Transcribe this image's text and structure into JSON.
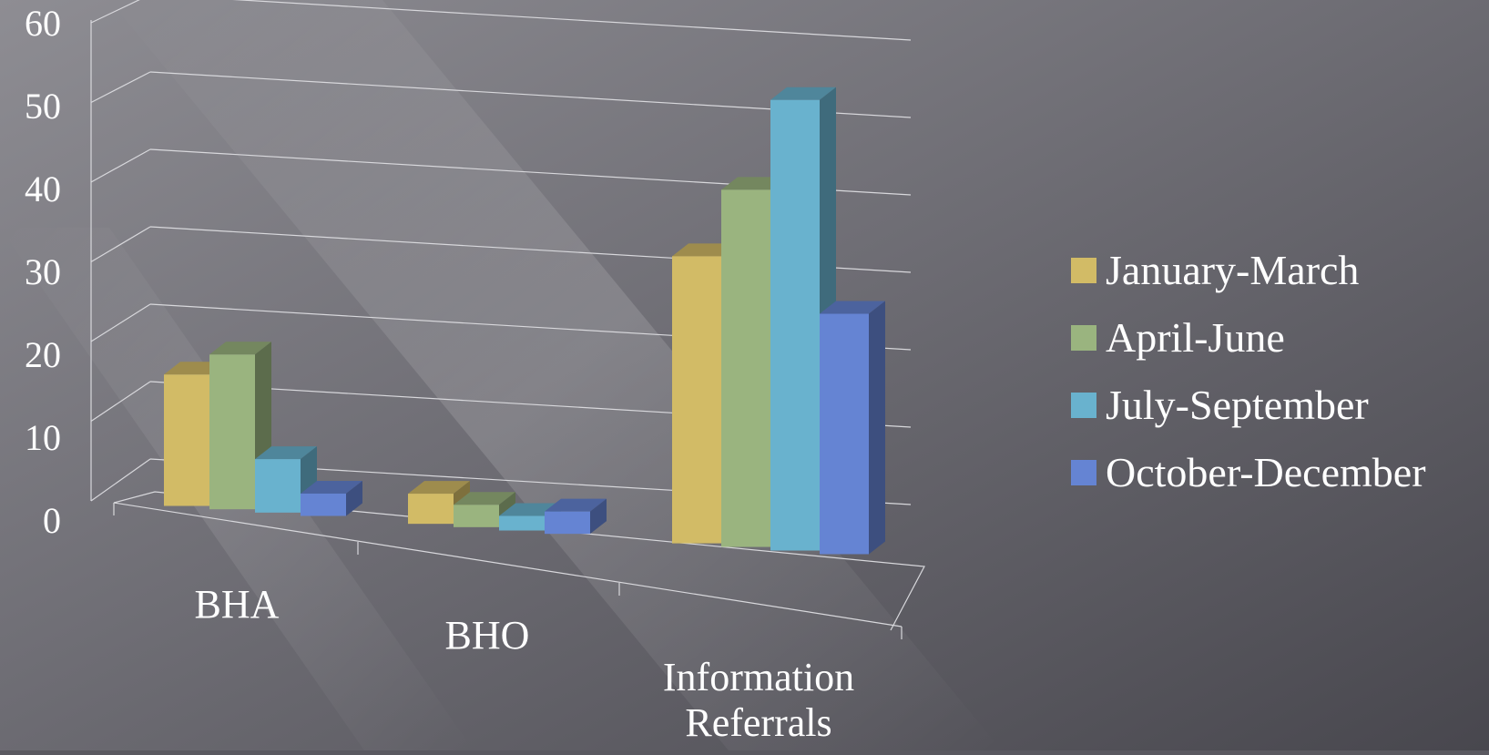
{
  "chart_data": {
    "type": "bar",
    "style": "3d-clustered-column",
    "categories": [
      "BHA",
      "BHO",
      "Information Referrals"
    ],
    "series": [
      {
        "name": "January-March",
        "color": "#d2bb66",
        "values": [
          15,
          2,
          35
        ]
      },
      {
        "name": "April-June",
        "color": "#9ab47f",
        "values": [
          18,
          1,
          44
        ]
      },
      {
        "name": "July-September",
        "color": "#69b2ce",
        "values": [
          5,
          0,
          56
        ]
      },
      {
        "name": "October-December",
        "color": "#6584d3",
        "values": [
          1,
          1,
          29
        ]
      }
    ],
    "y_ticks": [
      "0",
      "10",
      "20",
      "30",
      "40",
      "50",
      "60"
    ],
    "ylim": [
      0,
      60
    ],
    "grid": true,
    "legend": "right",
    "title": "",
    "xlabel": "",
    "ylabel": ""
  },
  "background": {
    "top": "#8a898f",
    "bottom": "#4e4d54"
  },
  "text_color": "#ffffff"
}
